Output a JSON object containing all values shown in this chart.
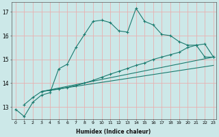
{
  "xlabel": "Humidex (Indice chaleur)",
  "bg_color": "#cce8e8",
  "line_color": "#1a7a6e",
  "grid_color": "#e8b0b0",
  "ylim": [
    12.5,
    17.4
  ],
  "xlim": [
    -0.5,
    23.3
  ],
  "line1_x": [
    0,
    1,
    2,
    3,
    4,
    5,
    6,
    7,
    8,
    9,
    10,
    11,
    12,
    13,
    14,
    15,
    16,
    17,
    18,
    19,
    20,
    21,
    22,
    23
  ],
  "line1_y": [
    12.9,
    12.6,
    13.2,
    13.5,
    13.6,
    14.6,
    14.8,
    15.5,
    16.05,
    16.6,
    16.65,
    16.55,
    16.2,
    16.15,
    17.15,
    16.6,
    16.45,
    16.05,
    16.0,
    15.75,
    15.6,
    15.6,
    15.1,
    15.1
  ],
  "line2_x": [
    1,
    2,
    3,
    4,
    5,
    6,
    7,
    8,
    9,
    10,
    11,
    12,
    13,
    14,
    15,
    16,
    17,
    18,
    19,
    20,
    21,
    22,
    23
  ],
  "line2_y": [
    13.1,
    13.4,
    13.65,
    13.7,
    13.75,
    13.82,
    13.9,
    14.0,
    14.12,
    14.25,
    14.38,
    14.5,
    14.62,
    14.75,
    14.85,
    15.0,
    15.1,
    15.2,
    15.3,
    15.5,
    15.6,
    15.65,
    15.1
  ],
  "line3_x": [
    3,
    23
  ],
  "line3_y": [
    13.65,
    15.1
  ],
  "line4_x": [
    3,
    23
  ],
  "line4_y": [
    13.65,
    14.75
  ],
  "yticks": [
    13,
    14,
    15,
    16,
    17
  ],
  "xticks": [
    0,
    1,
    2,
    3,
    4,
    5,
    6,
    7,
    8,
    9,
    10,
    11,
    12,
    13,
    14,
    15,
    16,
    17,
    18,
    19,
    20,
    21,
    22,
    23
  ]
}
